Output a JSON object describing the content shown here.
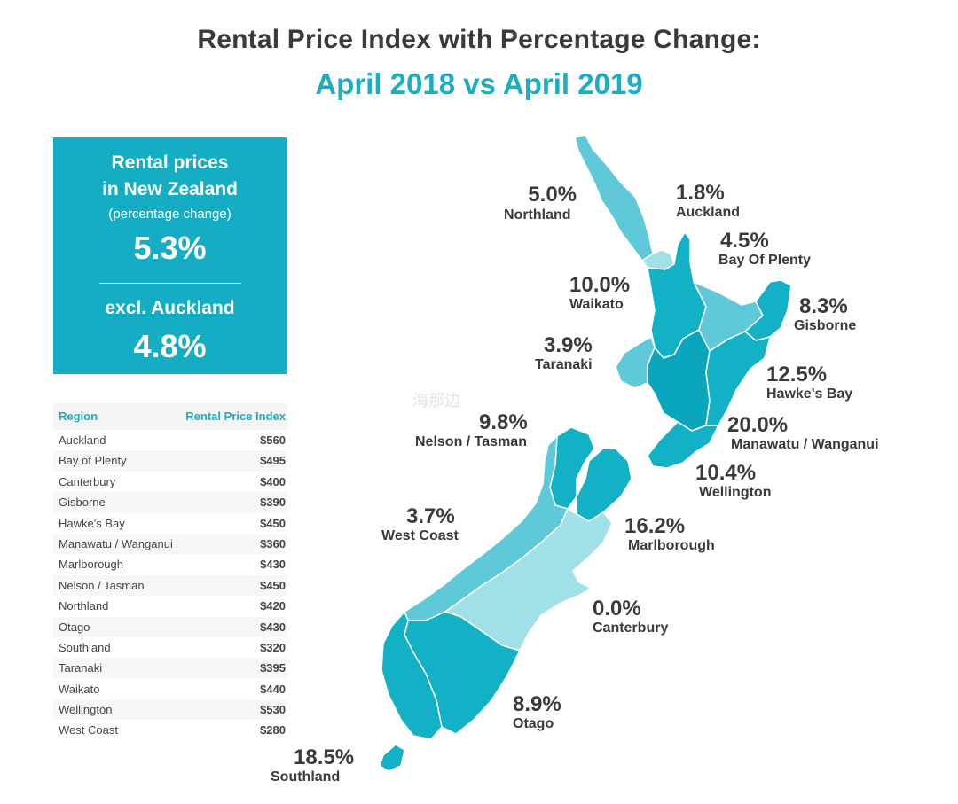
{
  "header": {
    "title": "Rental Price Index with Percentage Change:",
    "subtitle": "April 2018 vs April 2019"
  },
  "summary": {
    "line1": "Rental prices",
    "line2": "in New Zealand",
    "line3": "(percentage change)",
    "nz_change": "5.3%",
    "excl_label": "excl. Auckland",
    "excl_change": "4.8%"
  },
  "table": {
    "col_region": "Region",
    "col_index": "Rental Price Index",
    "rows": [
      {
        "region": "Auckland",
        "value": "$560"
      },
      {
        "region": "Bay of Plenty",
        "value": "$495"
      },
      {
        "region": "Canterbury",
        "value": "$400"
      },
      {
        "region": "Gisborne",
        "value": "$390"
      },
      {
        "region": "Hawke's Bay",
        "value": "$450"
      },
      {
        "region": "Manawatu / Wanganui",
        "value": "$360"
      },
      {
        "region": "Marlborough",
        "value": "$430"
      },
      {
        "region": "Nelson / Tasman",
        "value": "$450"
      },
      {
        "region": "Northland",
        "value": "$420"
      },
      {
        "region": "Otago",
        "value": "$430"
      },
      {
        "region": "Southland",
        "value": "$320"
      },
      {
        "region": "Taranaki",
        "value": "$395"
      },
      {
        "region": "Waikato",
        "value": "$440"
      },
      {
        "region": "Wellington",
        "value": "$530"
      },
      {
        "region": "West Coast",
        "value": "$280"
      }
    ]
  },
  "map": {
    "colors": {
      "light": "#9fe0e9",
      "mid": "#5fc9da",
      "dark": "#13b1c6",
      "deep": "#0aa6bd"
    },
    "labels": {
      "northland": {
        "pct": "5.0%",
        "name": "Northland"
      },
      "auckland": {
        "pct": "1.8%",
        "name": "Auckland"
      },
      "bay_of_plenty": {
        "pct": "4.5%",
        "name": "Bay Of Plenty"
      },
      "waikato": {
        "pct": "10.0%",
        "name": "Waikato"
      },
      "gisborne": {
        "pct": "8.3%",
        "name": "Gisborne"
      },
      "taranaki": {
        "pct": "3.9%",
        "name": "Taranaki"
      },
      "hawkes_bay": {
        "pct": "12.5%",
        "name": "Hawke's Bay"
      },
      "nelson_tasman": {
        "pct": "9.8%",
        "name": "Nelson / Tasman"
      },
      "manawatu": {
        "pct": "20.0%",
        "name": "Manawatu / Wanganui"
      },
      "wellington": {
        "pct": "10.4%",
        "name": "Wellington"
      },
      "west_coast": {
        "pct": "3.7%",
        "name": "West Coast"
      },
      "marlborough": {
        "pct": "16.2%",
        "name": "Marlborough"
      },
      "canterbury": {
        "pct": "0.0%",
        "name": "Canterbury"
      },
      "otago": {
        "pct": "8.9%",
        "name": "Otago"
      },
      "southland": {
        "pct": "18.5%",
        "name": "Southland"
      }
    },
    "watermark": "海那边"
  }
}
